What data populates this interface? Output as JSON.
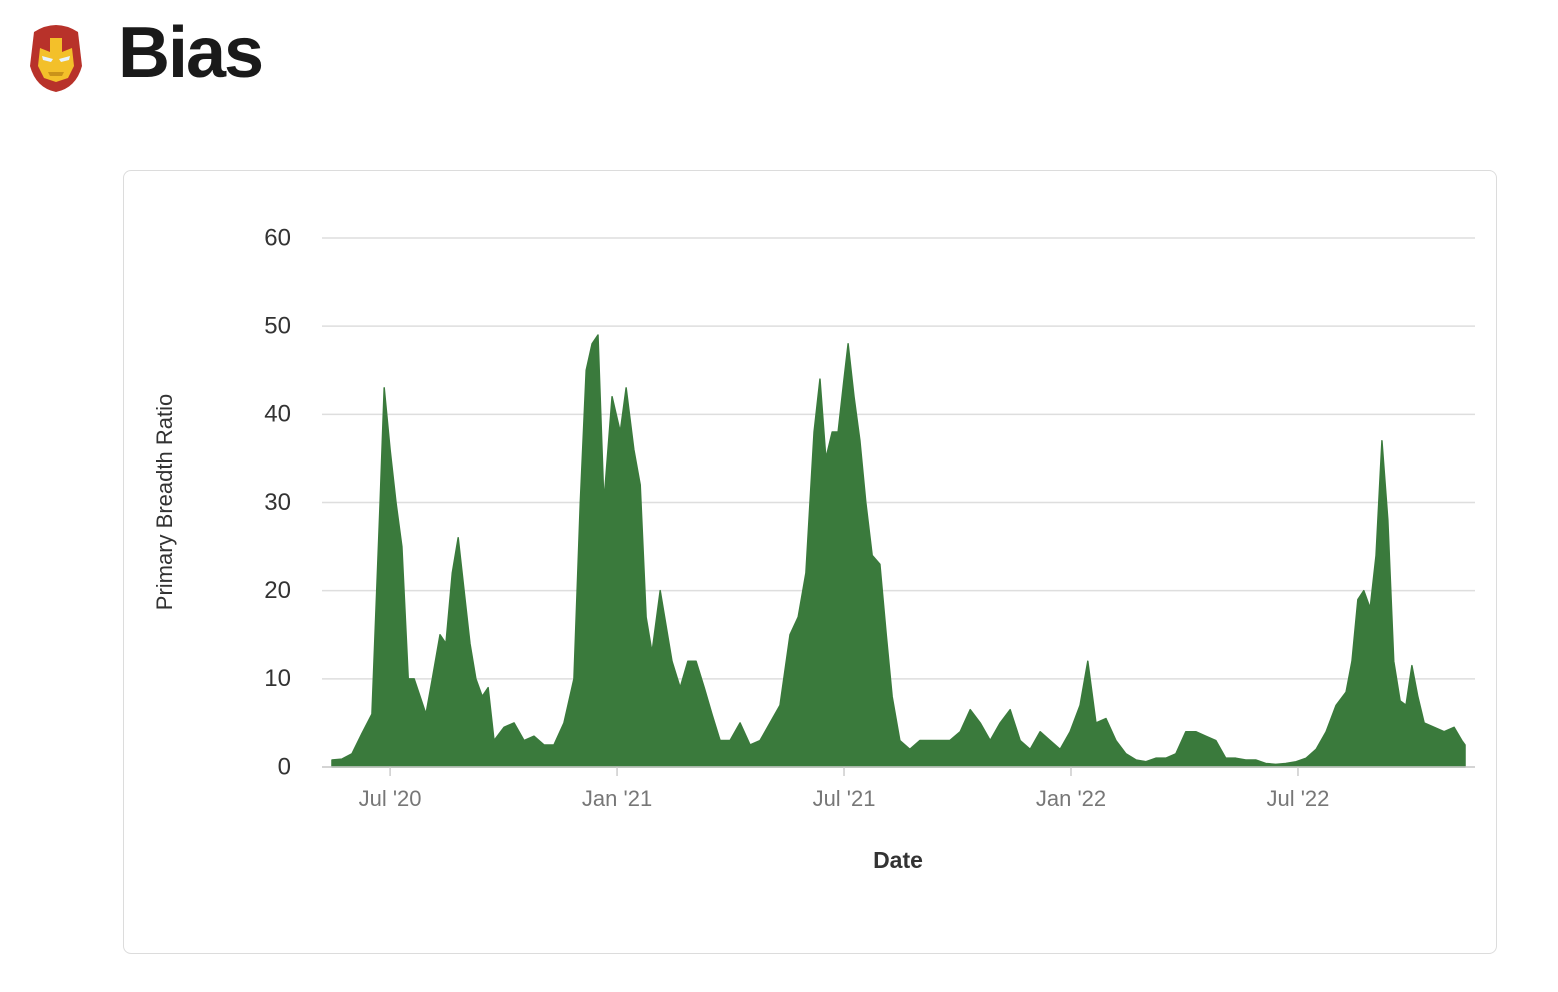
{
  "header": {
    "title": "Bias"
  },
  "chart_data": {
    "type": "area",
    "color": "#3a7a3c",
    "grid": true,
    "y_label": "Primary Breadth Ratio",
    "x_label": "Date",
    "ylim": [
      0,
      60
    ],
    "yticks": [
      0,
      10,
      20,
      30,
      40,
      50,
      60
    ],
    "xlim": [
      2020.35,
      2022.89
    ],
    "xticks": [
      {
        "value": 2020.5,
        "label": "Jul '20"
      },
      {
        "value": 2021.0,
        "label": "Jan '21"
      },
      {
        "value": 2021.5,
        "label": "Jul '21"
      },
      {
        "value": 2022.0,
        "label": "Jan '22"
      },
      {
        "value": 2022.5,
        "label": "Jul '22"
      }
    ],
    "x": [
      2020.372,
      2020.394,
      2020.416,
      2020.438,
      2020.46,
      2020.478,
      2020.487,
      2020.5,
      2020.513,
      2020.526,
      2020.54,
      2020.553,
      2020.566,
      2020.579,
      2020.593,
      2020.61,
      2020.623,
      2020.637,
      2020.65,
      2020.663,
      2020.676,
      2020.689,
      2020.703,
      2020.716,
      2020.729,
      2020.751,
      2020.773,
      2020.795,
      2020.817,
      2020.839,
      2020.861,
      2020.883,
      2020.905,
      2020.919,
      2020.932,
      2020.945,
      2020.958,
      2020.971,
      2020.989,
      2021.007,
      2021.02,
      2021.037,
      2021.051,
      2021.064,
      2021.077,
      2021.095,
      2021.108,
      2021.121,
      2021.139,
      2021.156,
      2021.174,
      2021.192,
      2021.209,
      2021.227,
      2021.249,
      2021.271,
      2021.293,
      2021.315,
      2021.337,
      2021.359,
      2021.381,
      2021.399,
      2021.416,
      2021.434,
      2021.447,
      2021.46,
      2021.474,
      2021.487,
      2021.5,
      2021.509,
      2021.522,
      2021.535,
      2021.548,
      2021.562,
      2021.579,
      2021.593,
      2021.606,
      2021.623,
      2021.645,
      2021.667,
      2021.689,
      2021.711,
      2021.733,
      2021.756,
      2021.778,
      2021.8,
      2021.822,
      2021.844,
      2021.866,
      2021.888,
      2021.91,
      2021.932,
      2021.954,
      2021.976,
      2021.998,
      2022.02,
      2022.037,
      2022.055,
      2022.077,
      2022.099,
      2022.121,
      2022.143,
      2022.165,
      2022.187,
      2022.209,
      2022.231,
      2022.253,
      2022.275,
      2022.297,
      2022.319,
      2022.341,
      2022.363,
      2022.385,
      2022.407,
      2022.429,
      2022.451,
      2022.473,
      2022.496,
      2022.518,
      2022.54,
      2022.562,
      2022.584,
      2022.606,
      2022.619,
      2022.632,
      2022.645,
      2022.659,
      2022.672,
      2022.685,
      2022.698,
      2022.711,
      2022.725,
      2022.738,
      2022.751,
      2022.764,
      2022.778,
      2022.8,
      2022.822,
      2022.844,
      2022.861,
      2022.868
    ],
    "values": [
      0.8,
      0.9,
      1.5,
      3.8,
      6,
      30,
      43,
      36,
      30,
      25,
      10,
      10,
      8,
      6,
      10,
      15,
      14,
      22,
      26,
      20,
      14,
      10,
      8,
      9,
      3,
      4.5,
      5,
      3,
      3.5,
      2.5,
      2.5,
      5,
      10,
      30,
      45,
      48,
      49,
      30,
      42,
      38,
      43,
      36,
      32,
      17,
      13,
      20,
      16,
      12,
      9,
      12,
      12,
      9,
      6,
      3,
      3,
      5,
      2.5,
      3,
      5,
      7,
      15,
      17,
      22,
      38,
      44,
      35,
      38,
      38,
      44,
      48,
      42,
      37,
      30,
      24,
      23,
      15,
      8,
      3,
      2,
      3,
      3,
      3,
      3,
      4,
      6.5,
      5,
      3,
      5,
      6.5,
      3,
      2,
      4,
      3,
      2,
      4,
      7,
      12,
      5,
      5.5,
      3,
      1.5,
      0.8,
      0.6,
      1,
      1,
      1.5,
      4,
      4,
      3.5,
      3,
      1,
      1,
      0.8,
      0.8,
      0.4,
      0.3,
      0.4,
      0.6,
      1,
      2,
      4,
      7,
      8.5,
      12,
      19,
      20,
      18,
      24,
      37,
      28,
      12,
      7.5,
      7,
      11.5,
      8,
      5,
      4.5,
      4,
      4.5,
      3,
      2.5
    ]
  }
}
